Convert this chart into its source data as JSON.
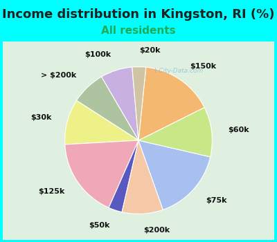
{
  "title": "Income distribution in Kingston, RI (%)",
  "subtitle": "All residents",
  "title_fontsize": 13,
  "subtitle_fontsize": 11,
  "background_color": "#00FFFF",
  "chart_bg_top": "#e8f5e0",
  "chart_bg_bottom": "#d0ecd8",
  "watermark": "ℹ City-Data.com",
  "labels": [
    "$100k",
    "> $200k",
    "$30k",
    "$125k",
    "$50k",
    "$200k",
    "$75k",
    "$60k",
    "$150k",
    "$20k"
  ],
  "sizes": [
    7.0,
    7.5,
    10.0,
    17.5,
    3.0,
    9.0,
    16.0,
    11.0,
    16.0,
    3.0
  ],
  "colors": [
    "#c8b0e0",
    "#aec4a0",
    "#eef088",
    "#f0a8b8",
    "#5858c0",
    "#f5c8a8",
    "#a8c0f0",
    "#c8e888",
    "#f5b870",
    "#d0c4a4"
  ],
  "label_fontsize": 8,
  "startangle": 95,
  "labeldistance": 1.22,
  "title_color": "#222222",
  "subtitle_color": "#22aa55"
}
